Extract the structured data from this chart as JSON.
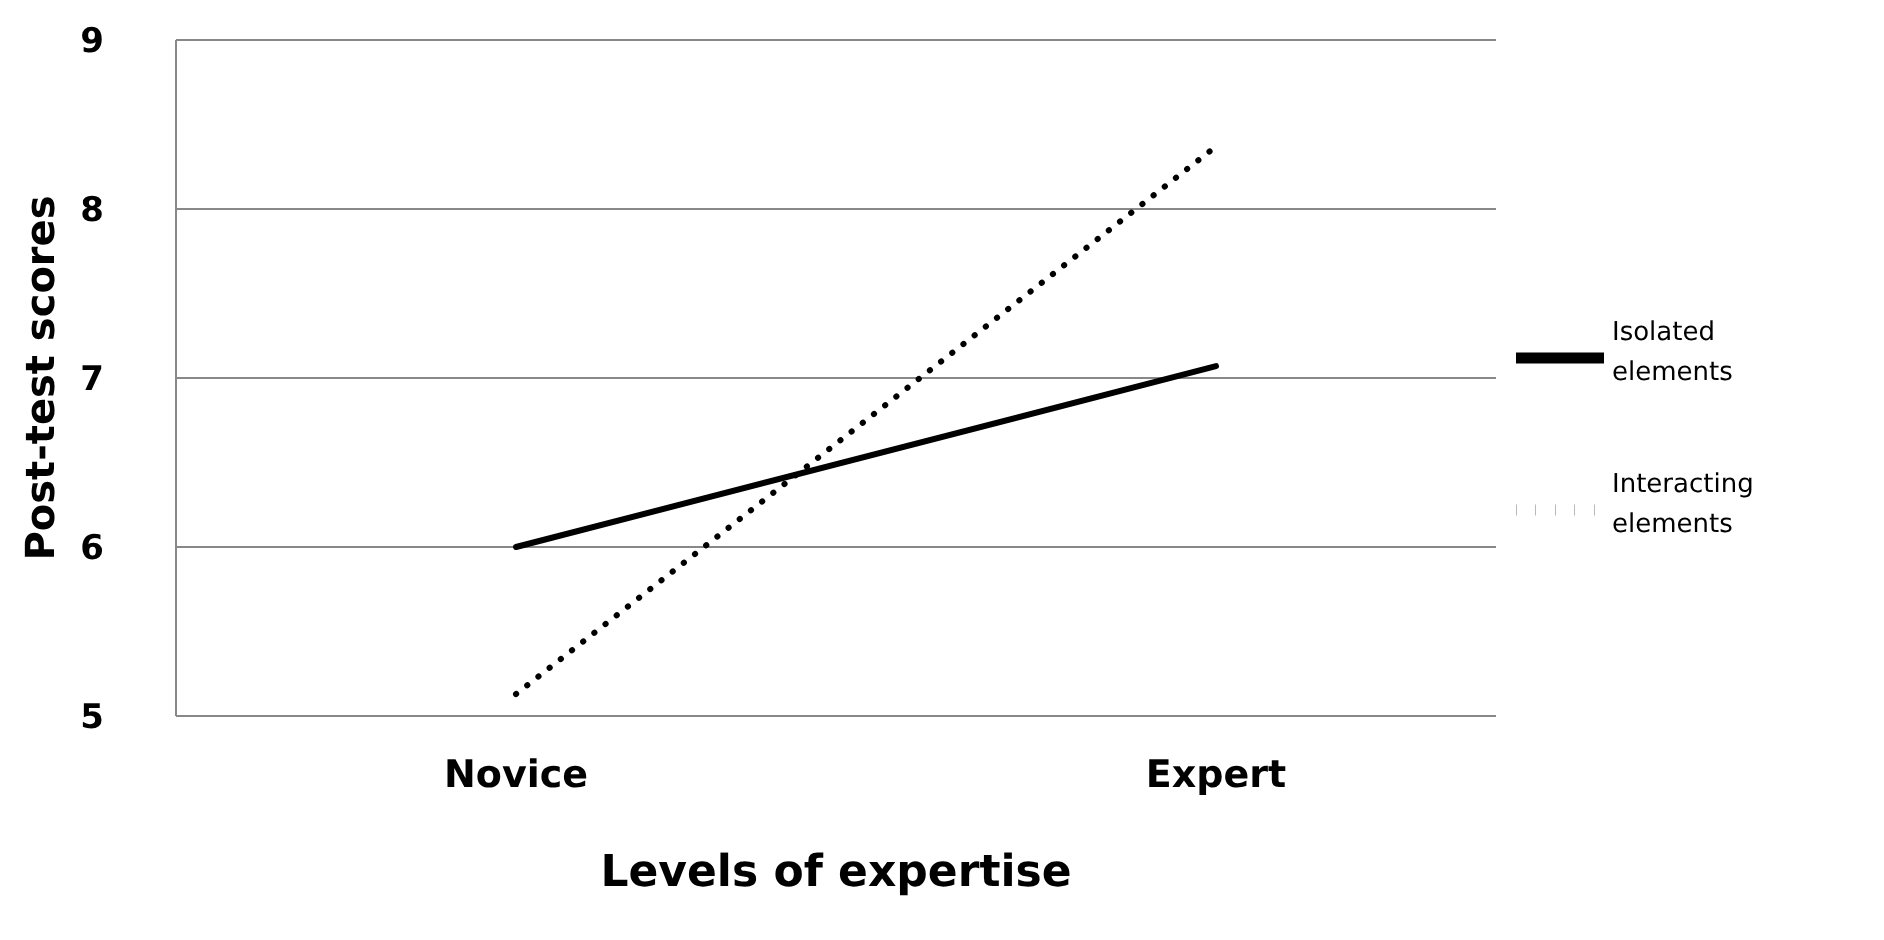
{
  "chart_data": {
    "type": "line",
    "xlabel": "Levels of expertise",
    "ylabel": "Post-test scores",
    "categories": [
      "Novice",
      "Expert"
    ],
    "series": [
      {
        "name": "Isolated elements",
        "color": "#000000",
        "values": [
          6.0,
          7.07
        ],
        "line_style": "solid"
      },
      {
        "name": "Interacting elements",
        "color": "#000000",
        "values": [
          5.13,
          8.37
        ],
        "line_style": "dotted"
      }
    ],
    "ylim": [
      5,
      9
    ],
    "yticks": [
      5,
      6,
      7,
      8,
      9
    ],
    "grid": "y",
    "legend": "right",
    "marker": "none"
  }
}
